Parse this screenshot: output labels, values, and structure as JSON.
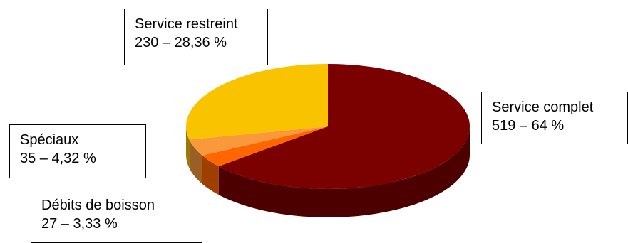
{
  "chart_data": {
    "type": "pie",
    "title": "",
    "slices": [
      {
        "label": "Service complet",
        "value": 519,
        "percent_label": "519 – 64 %",
        "color": "#7b0000"
      },
      {
        "label": "Débits de boisson",
        "value": 27,
        "percent_label": "27 – 3,33 %",
        "color": "#ff6600"
      },
      {
        "label": "Spéciaux",
        "value": 35,
        "percent_label": "35 – 4,32 %",
        "color": "#f9993b"
      },
      {
        "label": "Service restreint",
        "value": 230,
        "percent_label": "230 – 28,36 %",
        "color": "#f9c300"
      }
    ],
    "style": "3d",
    "legend": "none"
  }
}
